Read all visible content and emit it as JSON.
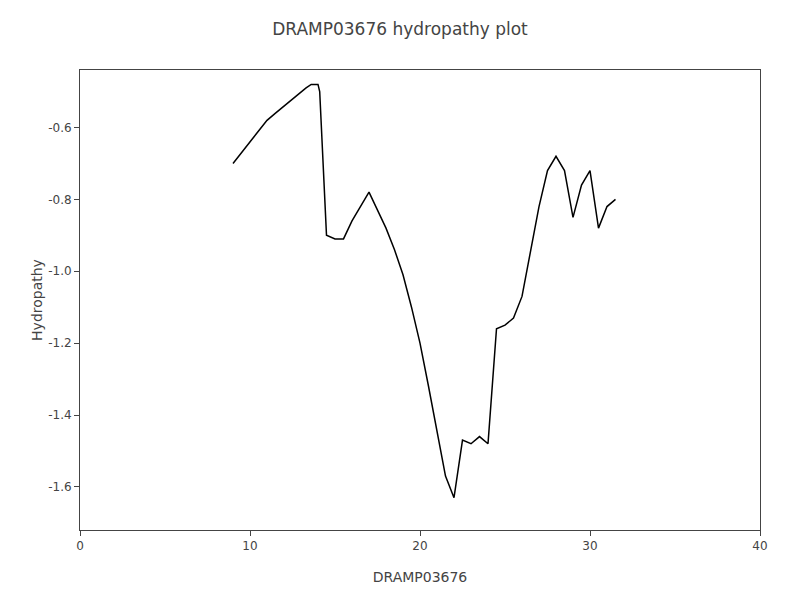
{
  "chart_data": {
    "type": "line",
    "title": "DRAMP03676 hydropathy plot",
    "xlabel": "DRAMP03676",
    "ylabel": "Hydropathy",
    "x": [
      9.0,
      9.5,
      10.0,
      10.5,
      11.0,
      11.5,
      12.0,
      12.5,
      13.0,
      13.3,
      13.6,
      14.0,
      14.1,
      14.5,
      15.0,
      15.5,
      16.0,
      16.5,
      17.0,
      17.5,
      18.0,
      18.5,
      19.0,
      19.5,
      20.0,
      20.5,
      21.0,
      21.5,
      22.0,
      22.5,
      23.0,
      23.5,
      24.0,
      24.5,
      25.0,
      25.5,
      26.0,
      26.5,
      27.0,
      27.5,
      28.0,
      28.5,
      29.0,
      29.5,
      30.0,
      30.5,
      31.0,
      31.5
    ],
    "values": [
      -0.7,
      -0.67,
      -0.64,
      -0.61,
      -0.58,
      -0.56,
      -0.54,
      -0.52,
      -0.5,
      -0.49,
      -0.48,
      -0.48,
      -0.5,
      -0.9,
      -0.91,
      -0.91,
      -0.86,
      -0.82,
      -0.78,
      -0.83,
      -0.88,
      -0.94,
      -1.01,
      -1.1,
      -1.2,
      -1.32,
      -1.45,
      -1.57,
      -1.63,
      -1.47,
      -1.48,
      -1.46,
      -1.48,
      -1.16,
      -1.15,
      -1.13,
      -1.07,
      -0.95,
      -0.82,
      -0.72,
      -0.68,
      -0.72,
      -0.85,
      -0.76,
      -0.72,
      -0.88,
      -0.82,
      -0.8
    ],
    "color": "#000000",
    "xlim": [
      0,
      40
    ],
    "xticks": [
      0,
      10,
      20,
      30,
      40
    ],
    "ylim": [
      -1.72,
      -0.44
    ],
    "yticks": [
      -1.6,
      -1.4,
      -1.2,
      {
        "value": -1.0,
        "label": "-1.0"
      },
      -0.8,
      -0.6
    ],
    "grid": false
  }
}
